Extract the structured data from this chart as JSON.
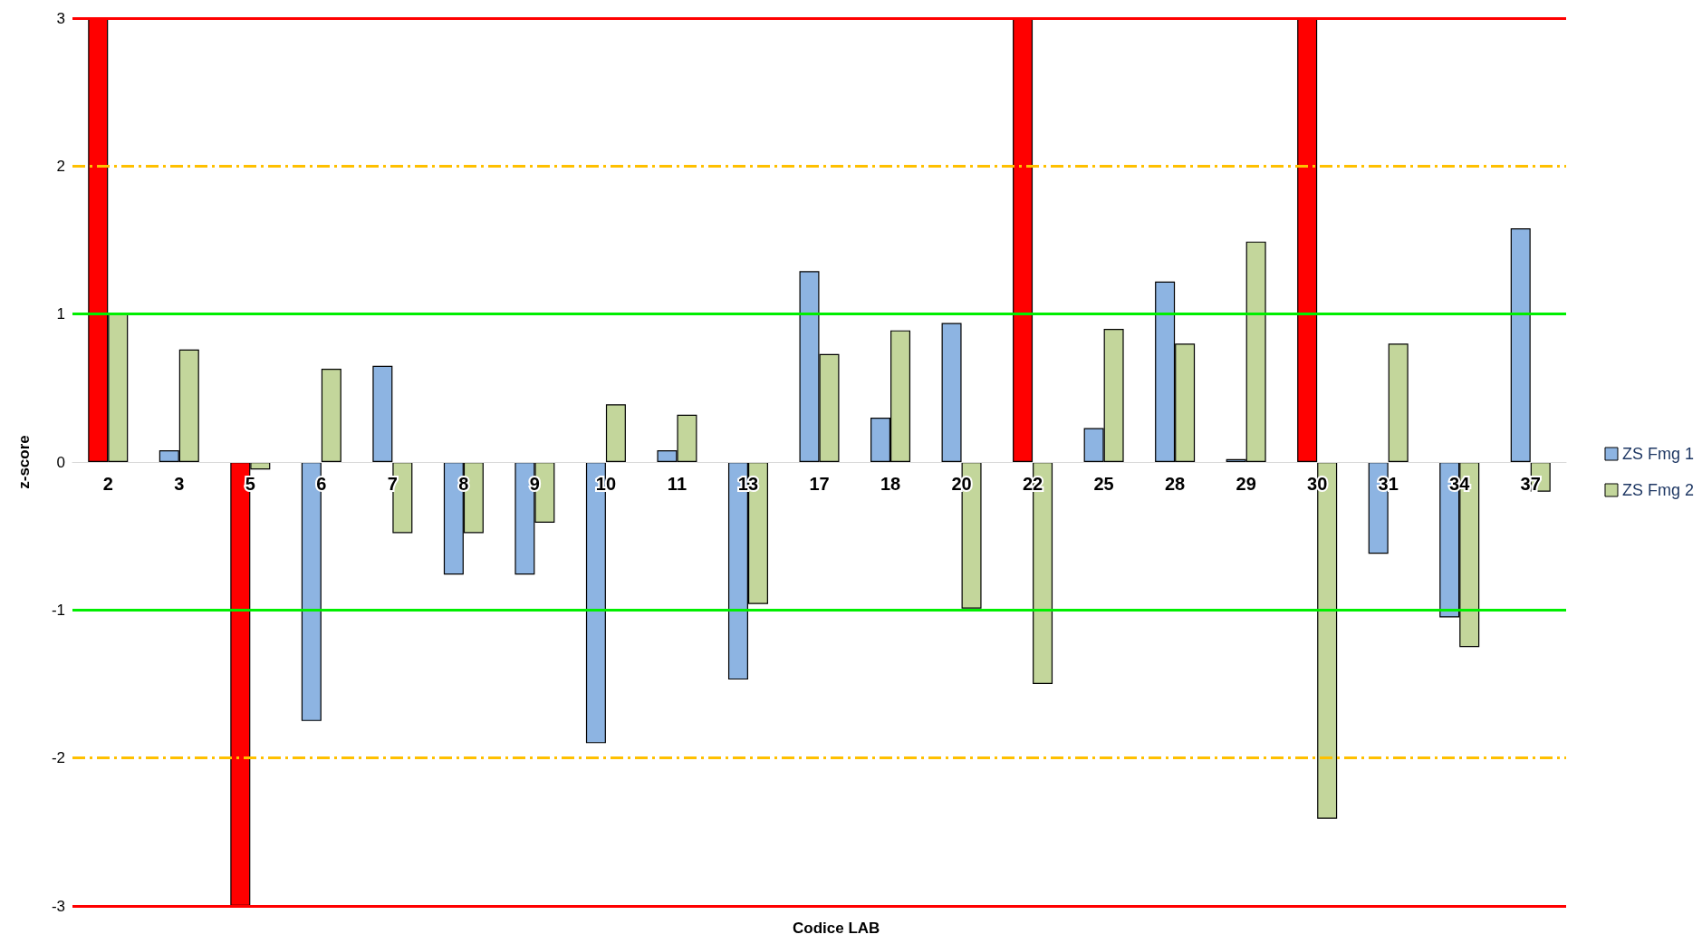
{
  "chart_data": {
    "type": "bar",
    "xlabel": "Codice LAB",
    "ylabel": "z-score",
    "categories": [
      "2",
      "3",
      "5",
      "6",
      "7",
      "8",
      "9",
      "10",
      "11",
      "13",
      "17",
      "18",
      "20",
      "22",
      "25",
      "28",
      "29",
      "30",
      "31",
      "34",
      "37"
    ],
    "series": [
      {
        "name": "ZS Fmg 1",
        "color": "#8db4e2",
        "values": [
          3,
          0.08,
          -3,
          -1.75,
          0.65,
          -0.76,
          -0.76,
          -1.9,
          0.08,
          -1.47,
          1.29,
          0.3,
          0.94,
          3,
          0.23,
          1.22,
          0.02,
          3,
          -0.62,
          -1.05,
          1.58
        ],
        "colors": [
          "#ff0000",
          "#8db4e2",
          "#ff0000",
          "#8db4e2",
          "#8db4e2",
          "#8db4e2",
          "#8db4e2",
          "#8db4e2",
          "#8db4e2",
          "#8db4e2",
          "#8db4e2",
          "#8db4e2",
          "#8db4e2",
          "#ff0000",
          "#8db4e2",
          "#8db4e2",
          "#8db4e2",
          "#ff0000",
          "#8db4e2",
          "#8db4e2",
          "#8db4e2"
        ]
      },
      {
        "name": "ZS Fmg 2",
        "color": "#c3d69b",
        "values": [
          1.01,
          0.76,
          -0.05,
          0.63,
          -0.48,
          -0.48,
          -0.41,
          0.39,
          0.32,
          -0.96,
          0.73,
          0.89,
          -0.99,
          -1.5,
          0.9,
          0.8,
          1.49,
          -2.41,
          0.8,
          -1.25,
          -0.2
        ]
      }
    ],
    "ylim": [
      -3,
      3
    ],
    "yticks": [
      -3,
      -2,
      -1,
      0,
      1,
      2,
      3
    ],
    "grid": false,
    "legend": "right",
    "ref_lines": [
      {
        "axis": "y",
        "value": 3,
        "color": "#ff0000",
        "line_style": "solid"
      },
      {
        "axis": "y",
        "value": -3,
        "color": "#ff0000",
        "line_style": "solid"
      },
      {
        "axis": "y",
        "value": 2,
        "color": "#ffc000",
        "line_style": "dashed"
      },
      {
        "axis": "y",
        "value": -2,
        "color": "#ffc000",
        "line_style": "dashed"
      },
      {
        "axis": "y",
        "value": 1,
        "color": "#00ee00",
        "line_style": "solid"
      },
      {
        "axis": "y",
        "value": -1,
        "color": "#00ee00",
        "line_style": "solid"
      }
    ]
  }
}
